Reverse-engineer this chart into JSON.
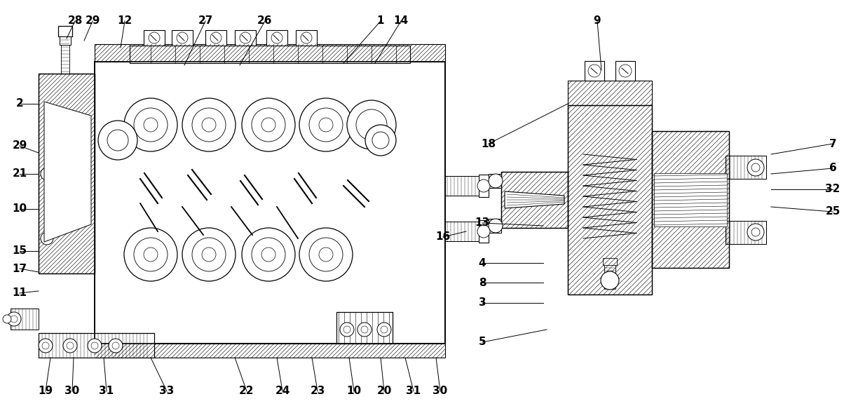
{
  "bg": "#ffffff",
  "lw_main": 1.0,
  "lw_thin": 0.5,
  "fs": 11,
  "top_labels": [
    [
      "28",
      107,
      30
    ],
    [
      "29",
      132,
      30
    ],
    [
      "12",
      178,
      30
    ],
    [
      "27",
      293,
      30
    ],
    [
      "26",
      378,
      30
    ],
    [
      "1",
      543,
      30
    ],
    [
      "14",
      572,
      30
    ],
    [
      "9",
      852,
      30
    ]
  ],
  "left_labels": [
    [
      "2",
      28,
      148
    ],
    [
      "29",
      28,
      208
    ],
    [
      "21",
      28,
      248
    ],
    [
      "10",
      28,
      298
    ],
    [
      "15",
      28,
      358
    ],
    [
      "17",
      28,
      383
    ],
    [
      "11",
      28,
      418
    ]
  ],
  "bottom_labels": [
    [
      "19",
      65,
      558
    ],
    [
      "30",
      103,
      558
    ],
    [
      "31",
      152,
      558
    ],
    [
      "33",
      238,
      558
    ],
    [
      "22",
      352,
      558
    ],
    [
      "24",
      403,
      558
    ],
    [
      "23",
      453,
      558
    ],
    [
      "10",
      505,
      558
    ],
    [
      "20",
      548,
      558
    ],
    [
      "31",
      590,
      558
    ],
    [
      "30",
      628,
      558
    ]
  ],
  "right_labels": [
    [
      "18",
      697,
      205
    ],
    [
      "13",
      688,
      318
    ],
    [
      "4",
      688,
      375
    ],
    [
      "8",
      688,
      403
    ],
    [
      "3",
      688,
      432
    ],
    [
      "5",
      688,
      488
    ],
    [
      "16",
      632,
      338
    ],
    [
      "7",
      1188,
      205
    ],
    [
      "6",
      1188,
      240
    ],
    [
      "32",
      1188,
      270
    ],
    [
      "25",
      1188,
      302
    ]
  ]
}
